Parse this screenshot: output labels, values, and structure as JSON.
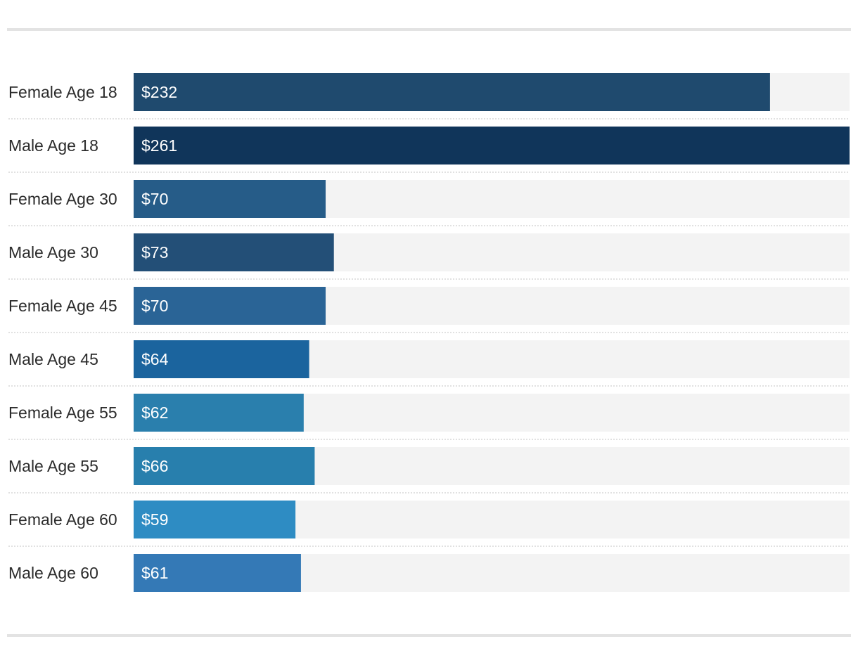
{
  "chart_data": {
    "type": "bar",
    "orientation": "horizontal",
    "title": "",
    "xlabel": "",
    "ylabel": "",
    "categories": [
      "Female Age 18",
      "Male Age 18",
      "Female Age 30",
      "Male Age 30",
      "Female Age 45",
      "Male Age 45",
      "Female Age 55",
      "Male Age 55",
      "Female Age 60",
      "Male Age 60"
    ],
    "values": [
      232,
      261,
      70,
      73,
      70,
      64,
      62,
      66,
      59,
      61
    ],
    "value_labels": [
      "$232",
      "$261",
      "$70",
      "$73",
      "$70",
      "$64",
      "$62",
      "$66",
      "$59",
      "$61"
    ],
    "bar_colors": [
      "#1f4a6e",
      "#10355a",
      "#265c88",
      "#234f77",
      "#2a6496",
      "#1b649e",
      "#2a7fad",
      "#287fad",
      "#2e8cc3",
      "#3479b6"
    ],
    "xlim": [
      0,
      261
    ],
    "grid": false,
    "legend": "none"
  }
}
